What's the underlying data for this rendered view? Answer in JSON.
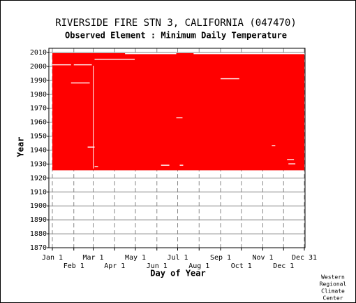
{
  "chart_data": {
    "type": "availability",
    "title": "RIVERSIDE FIRE STN 3, CALIFORNIA   (047470)",
    "subtitle": "Observed Element : Minimum Daily Temperature",
    "xlabel": "Day of Year",
    "ylabel": "Year",
    "color": "#ff0000",
    "grid": true,
    "xlim": [
      1,
      365
    ],
    "ylim": [
      1870,
      2013
    ],
    "xticks": [
      {
        "value": 1,
        "label": "Jan 1"
      },
      {
        "value": 32,
        "label": "Feb 1"
      },
      {
        "value": 60,
        "label": "Mar 1"
      },
      {
        "value": 91,
        "label": "Apr 1"
      },
      {
        "value": 121,
        "label": "May 1"
      },
      {
        "value": 152,
        "label": "Jun 1"
      },
      {
        "value": 182,
        "label": "Jul 1"
      },
      {
        "value": 213,
        "label": "Aug 1"
      },
      {
        "value": 244,
        "label": "Sep 1"
      },
      {
        "value": 274,
        "label": "Oct 1"
      },
      {
        "value": 305,
        "label": "Nov 1"
      },
      {
        "value": 335,
        "label": "Dec 1"
      },
      {
        "value": 365,
        "label": "Dec 31"
      }
    ],
    "yticks": [
      1870,
      1880,
      1890,
      1900,
      1910,
      1920,
      1930,
      1940,
      1950,
      1960,
      1970,
      1980,
      1990,
      2000,
      2010
    ],
    "coverage": [
      1926,
      2009
    ],
    "gaps": [
      {
        "years": [
          1927,
          2000
        ],
        "days": [
          59.6,
          60.4
        ]
      },
      {
        "years": [
          2001,
          2001
        ],
        "days": [
          1,
          28
        ]
      },
      {
        "years": [
          2001,
          2001
        ],
        "days": [
          32,
          58
        ]
      },
      {
        "years": [
          1988,
          1988
        ],
        "days": [
          28,
          55
        ]
      },
      {
        "years": [
          1942,
          1942
        ],
        "days": [
          52,
          62
        ]
      },
      {
        "years": [
          1963,
          1963
        ],
        "days": [
          180,
          189
        ]
      },
      {
        "years": [
          1991,
          1991
        ],
        "days": [
          244,
          271
        ]
      },
      {
        "years": [
          1943,
          1943
        ],
        "days": [
          318,
          323
        ]
      },
      {
        "years": [
          1933,
          1933
        ],
        "days": [
          340,
          350
        ]
      },
      {
        "years": [
          1930,
          1930
        ],
        "days": [
          342,
          352
        ]
      },
      {
        "years": [
          1928,
          1928
        ],
        "days": [
          62,
          67
        ]
      },
      {
        "years": [
          1929,
          1929
        ],
        "days": [
          158,
          170
        ]
      },
      {
        "years": [
          1929,
          1929
        ],
        "days": [
          185,
          190
        ]
      },
      {
        "years": [
          2009,
          2009
        ],
        "days": [
          106,
          180
        ]
      },
      {
        "years": [
          2009,
          2009
        ],
        "days": [
          205,
          365
        ]
      },
      {
        "years": [
          2005,
          2005
        ],
        "days": [
          62,
          120
        ]
      }
    ],
    "credit": [
      "Western",
      "Regional",
      "Climate",
      "Center"
    ]
  }
}
